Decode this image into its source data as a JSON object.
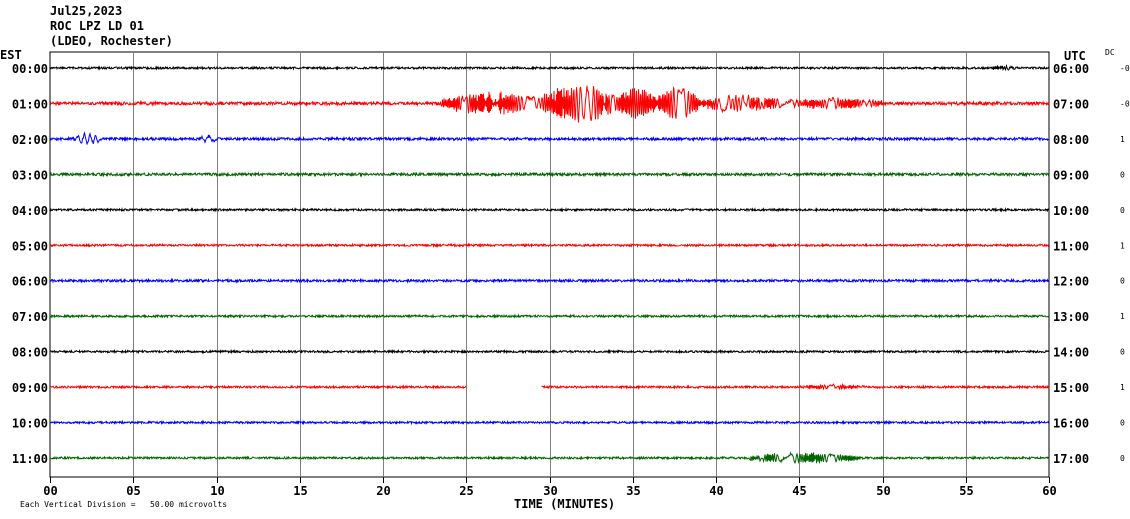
{
  "header": {
    "date": "Jul25,2023",
    "station": "ROC LPZ LD 01",
    "network": "(LDEO, Rochester)"
  },
  "left_tz": "EST",
  "right_tz": "UTC",
  "dc_label": "DC",
  "footer": {
    "note": "Each Vertical Division =   50.00 microvolts",
    "xlabel": "TIME (MINUTES)"
  },
  "chart_data": {
    "type": "line",
    "title": "",
    "xlabel": "TIME (MINUTES)",
    "xlim": [
      0,
      60
    ],
    "x_ticks": [
      "00",
      "05",
      "10",
      "15",
      "20",
      "25",
      "30",
      "35",
      "40",
      "45",
      "50",
      "55",
      "60"
    ],
    "grid": true,
    "series": [
      {
        "est": "00:00",
        "utc": "06:00",
        "dc": "-0",
        "color": "#000000",
        "amp": 1.0,
        "events": [
          {
            "start": 56.5,
            "end": 58.0,
            "amp": 2
          }
        ]
      },
      {
        "est": "01:00",
        "utc": "07:00",
        "dc": "-0",
        "color": "#ff0000",
        "amp": 1.5,
        "events": [
          {
            "start": 23.5,
            "end": 29.5,
            "amp": 11
          },
          {
            "start": 29.5,
            "end": 34,
            "amp": 18
          },
          {
            "start": 34,
            "end": 36.5,
            "amp": 16
          },
          {
            "start": 36.5,
            "end": 39,
            "amp": 17
          },
          {
            "start": 39,
            "end": 44,
            "amp": 8
          },
          {
            "start": 44,
            "end": 50,
            "amp": 5
          }
        ]
      },
      {
        "est": "02:00",
        "utc": "08:00",
        "dc": "1",
        "color": "#0000ff",
        "amp": 1.3,
        "events": [
          {
            "start": 1.5,
            "end": 3.0,
            "amp": 5
          },
          {
            "start": 9.0,
            "end": 10.0,
            "amp": 3
          }
        ]
      },
      {
        "est": "03:00",
        "utc": "09:00",
        "dc": "0",
        "color": "#006400",
        "amp": 1.3,
        "events": []
      },
      {
        "est": "04:00",
        "utc": "10:00",
        "dc": "0",
        "color": "#000000",
        "amp": 1.0,
        "events": []
      },
      {
        "est": "05:00",
        "utc": "11:00",
        "dc": "1",
        "color": "#ff0000",
        "amp": 1.0,
        "events": []
      },
      {
        "est": "06:00",
        "utc": "12:00",
        "dc": "0",
        "color": "#0000ff",
        "amp": 1.2,
        "events": []
      },
      {
        "est": "07:00",
        "utc": "13:00",
        "dc": "1",
        "color": "#006400",
        "amp": 1.0,
        "events": []
      },
      {
        "est": "08:00",
        "utc": "14:00",
        "dc": "0",
        "color": "#000000",
        "amp": 1.0,
        "events": []
      },
      {
        "est": "09:00",
        "utc": "15:00",
        "dc": "1",
        "color": "#ff0000",
        "amp": 1.0,
        "gaps": [
          [
            25.0,
            29.5
          ]
        ],
        "events": [
          {
            "start": 45.0,
            "end": 49.0,
            "amp": 2
          }
        ]
      },
      {
        "est": "10:00",
        "utc": "16:00",
        "dc": "0",
        "color": "#0000ff",
        "amp": 1.0,
        "events": []
      },
      {
        "est": "11:00",
        "utc": "17:00",
        "dc": "0",
        "color": "#006400",
        "amp": 1.0,
        "events": [
          {
            "start": 42,
            "end": 48.5,
            "amp": 5
          }
        ]
      }
    ]
  }
}
